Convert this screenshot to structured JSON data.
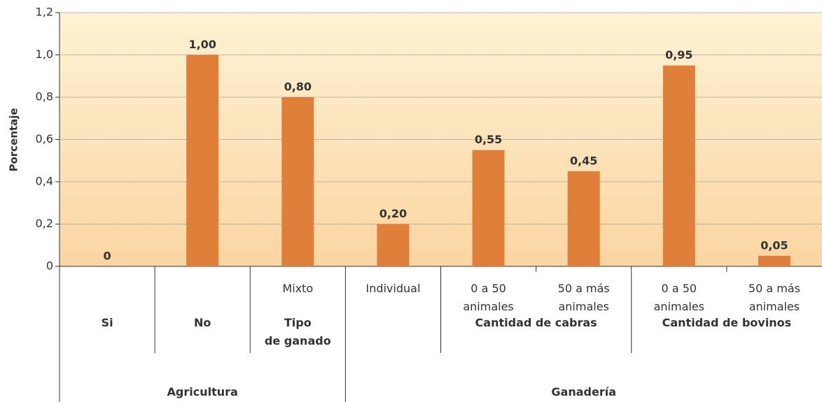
{
  "chart_data": {
    "type": "bar",
    "y_label": "Porcentaje",
    "categories": [
      null,
      null,
      "Mixto",
      "Individual",
      "0 a 50\nanimales",
      "50 a más\nanimales",
      "0 a 50\nanimales",
      "50 a más\nanimales"
    ],
    "values": [
      0,
      1.0,
      0.8,
      0.2,
      0.55,
      0.45,
      0.95,
      0.05
    ],
    "value_labels": [
      "0",
      "1,00",
      "0,80",
      "0,20",
      "0,55",
      "0,45",
      "0,95",
      "0,05"
    ],
    "groups": [
      [
        {
          "label": "Si",
          "span": 1
        },
        {
          "label": "No",
          "span": 1
        },
        {
          "label": "Tipo\nde ganado",
          "span": 1
        },
        {
          "label": null,
          "span": 1
        },
        {
          "label": "Cantidad de cabras",
          "span": 2
        },
        {
          "label": "Cantidad de bovinos",
          "span": 2
        }
      ],
      [
        {
          "label": "Agricultura",
          "span": 3
        },
        {
          "label": "Ganadería",
          "span": 5
        }
      ]
    ],
    "color": "#e07f39",
    "ylim": [
      0,
      1.2
    ],
    "yticks": [
      0,
      {
        "value": 0.2,
        "label": "0,2"
      },
      {
        "value": 0.4,
        "label": "0,4"
      },
      {
        "value": 0.6,
        "label": "0,6"
      },
      {
        "value": 0.8,
        "label": "0,8"
      },
      {
        "value": 1.0,
        "label": "1,0"
      },
      {
        "value": 1.2,
        "label": "1,2"
      }
    ],
    "grid": true
  }
}
